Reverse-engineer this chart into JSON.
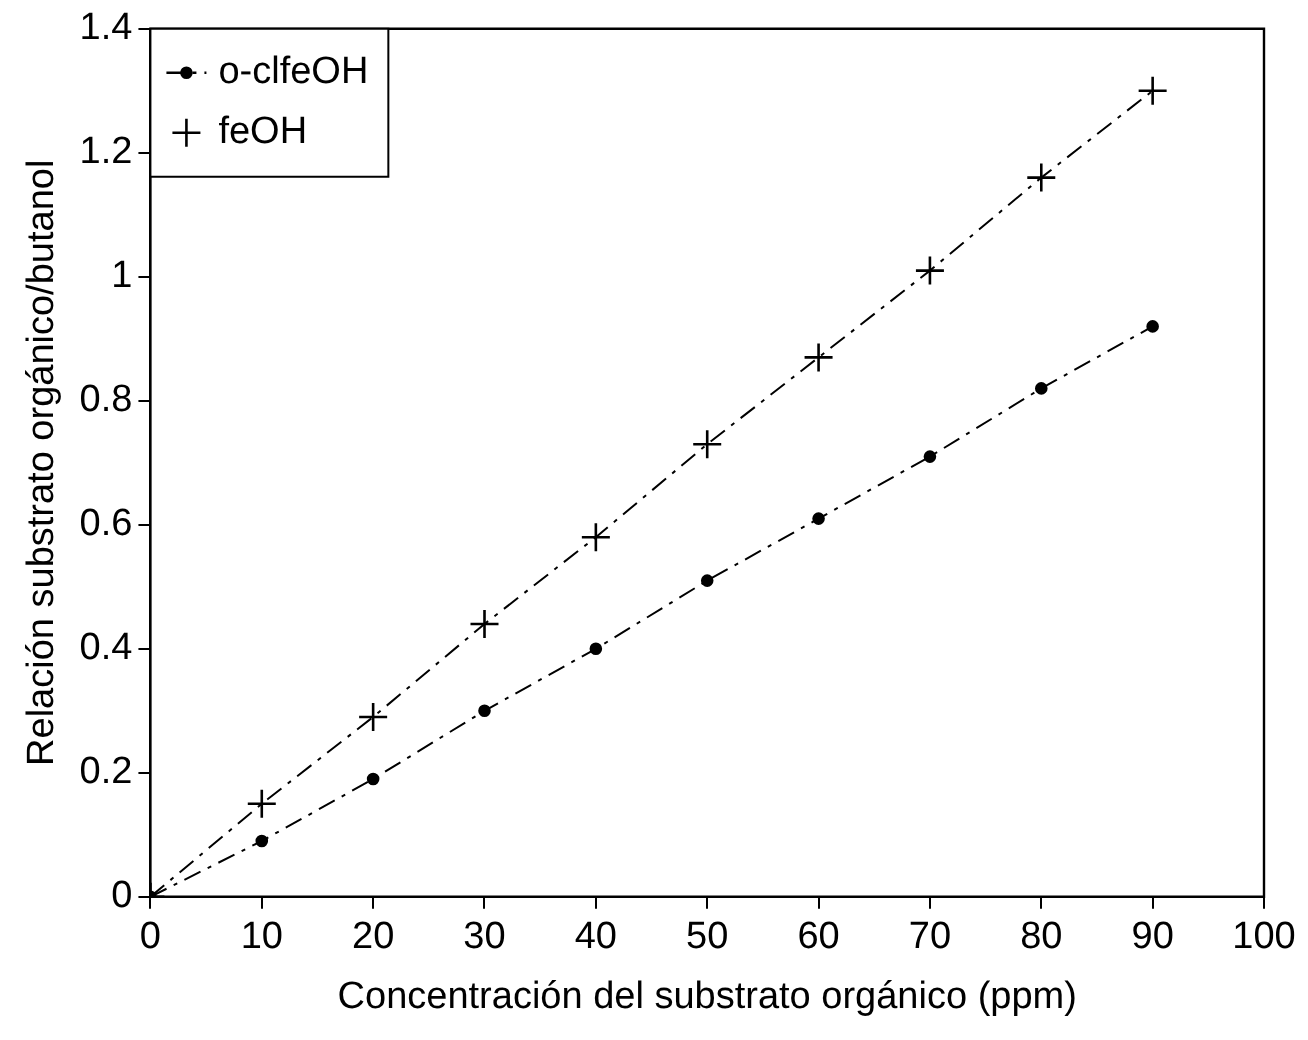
{
  "chart_data": {
    "type": "line",
    "xlabel": "Concentración del substrato orgánico (ppm)",
    "ylabel": "Relación substrato orgánico/butanol",
    "x": [
      0,
      10,
      20,
      30,
      40,
      50,
      60,
      70,
      80,
      90
    ],
    "series": [
      {
        "name": "o-clfeOH",
        "color": "#000000",
        "marker": "circle",
        "values": [
          0,
          0.09,
          0.19,
          0.3,
          0.4,
          0.51,
          0.61,
          0.71,
          0.82,
          0.92
        ]
      },
      {
        "name": "feOH",
        "color": "#000000",
        "marker": "cross",
        "values": [
          0,
          0.15,
          0.29,
          0.44,
          0.58,
          0.73,
          0.87,
          1.01,
          1.16,
          1.3
        ]
      }
    ],
    "xlim": [
      0,
      100
    ],
    "xticks": [
      0,
      10,
      20,
      30,
      40,
      50,
      60,
      70,
      80,
      90,
      100
    ],
    "ylim": [
      0,
      1.4
    ],
    "yticks": [
      0,
      0.2,
      0.4,
      0.6,
      0.8,
      1,
      1.2,
      1.4
    ],
    "grid": false,
    "legend": "top left",
    "line_style": "dashed"
  }
}
